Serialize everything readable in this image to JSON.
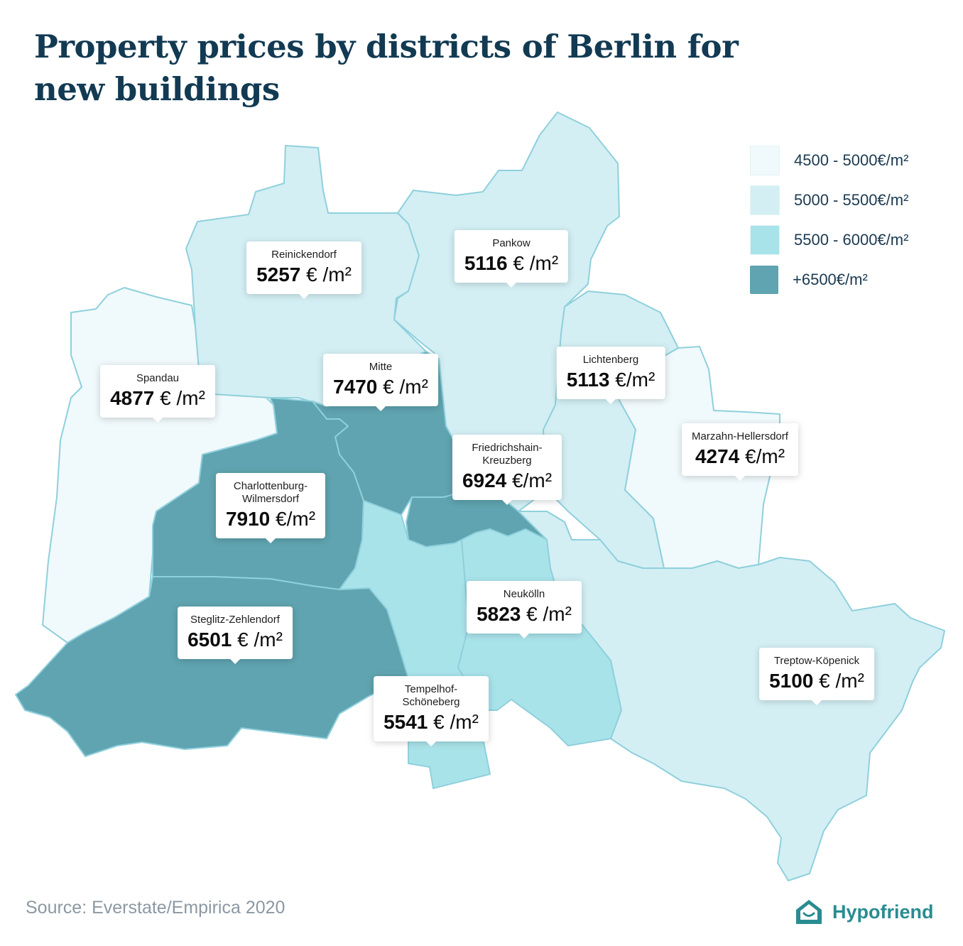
{
  "title": "Property prices by districts of Berlin for new buildings",
  "source": "Source: Everstate/Empirica 2020",
  "brand": {
    "name": "Hypofriend",
    "icon": "house-icon",
    "color": "#2a8c91"
  },
  "price_unit": "€/m²",
  "legend": [
    {
      "label": "4500 - 5000€/m²",
      "color": "#f0f9fb"
    },
    {
      "label": "5000 - 5500€/m²",
      "color": "#d3eff4"
    },
    {
      "label": "5500 - 6000€/m²",
      "color": "#a9e3ea"
    },
    {
      "label": "+6500€/m²",
      "color": "#5fa4b0"
    }
  ],
  "districts": [
    {
      "id": "reinickendorf",
      "name": "Reinickendorf",
      "price": "5257",
      "unit": "€ /m²"
    },
    {
      "id": "pankow",
      "name": "Pankow",
      "price": "5116",
      "unit": "€ /m²"
    },
    {
      "id": "spandau",
      "name": "Spandau",
      "price": "4877",
      "unit": "€ /m²"
    },
    {
      "id": "mitte",
      "name": "Mitte",
      "price": "7470",
      "unit": "€ /m²"
    },
    {
      "id": "lichtenberg",
      "name": "Lichtenberg",
      "price": "5113",
      "unit": "€/m²"
    },
    {
      "id": "friedrichshain-kreuzberg",
      "name": "Friedrichshain-\nKreuzberg",
      "price": "6924",
      "unit": "€/m²"
    },
    {
      "id": "marzahn-hellersdorf",
      "name": "Marzahn-Hellersdorf",
      "price": "4274",
      "unit": "€/m²"
    },
    {
      "id": "charlottenburg-wilmersdorf",
      "name": "Charlottenburg-\nWilmersdorf",
      "price": "7910",
      "unit": "€/m²"
    },
    {
      "id": "neukoelln",
      "name": "Neukölln",
      "price": "5823",
      "unit": "€ /m²"
    },
    {
      "id": "steglitz-zehlendorf",
      "name": "Steglitz-Zehlendorf",
      "price": "6501",
      "unit": "€ /m²"
    },
    {
      "id": "treptow-koepenick",
      "name": "Treptow-Köpenick",
      "price": "5100",
      "unit": "€ /m²"
    },
    {
      "id": "tempelhof-schoeneberg",
      "name": "Tempelhof-\nSchöneberg",
      "price": "5541",
      "unit": "€ /m²"
    }
  ]
}
